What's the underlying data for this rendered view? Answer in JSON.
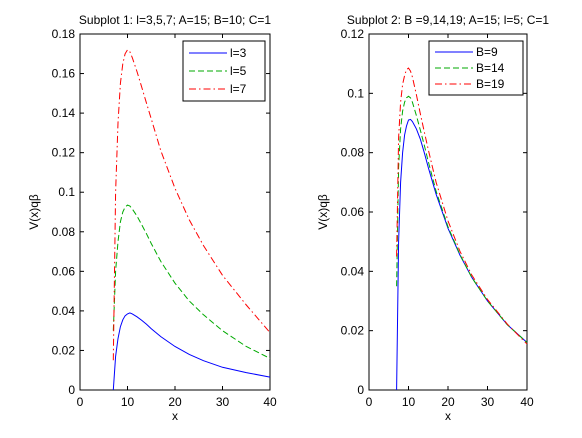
{
  "chart_data": [
    {
      "type": "line",
      "title": "Subplot 1: l=3,5,7; A=15; B=10; C=1",
      "xlabel": "x",
      "ylabel": "V(x)qβ",
      "xlim": [
        0,
        40
      ],
      "ylim": [
        0,
        0.18
      ],
      "xticks": [
        0,
        10,
        20,
        30,
        40
      ],
      "yticks": [
        0,
        0.02,
        0.04,
        0.06,
        0.08,
        0.1,
        0.12,
        0.14,
        0.16,
        0.18
      ],
      "xtick_labels": [
        "0",
        "10",
        "20",
        "30",
        "40"
      ],
      "ytick_labels": [
        "0",
        "0.02",
        "0.04",
        "0.06",
        "0.08",
        "0.1",
        "0.12",
        "0.14",
        "0.16",
        "0.18"
      ],
      "legend_position": "top-right",
      "grid": false,
      "series": [
        {
          "name": "l=3",
          "color": "#0000ff",
          "style": "solid",
          "x": [
            7,
            7.5,
            8,
            8.5,
            9,
            9.5,
            10,
            10.5,
            11,
            12,
            13,
            14,
            15,
            17,
            20,
            23,
            26,
            30,
            35,
            40
          ],
          "y": [
            0,
            0.017,
            0.026,
            0.032,
            0.0355,
            0.0375,
            0.0385,
            0.039,
            0.0385,
            0.037,
            0.0352,
            0.0332,
            0.031,
            0.027,
            0.022,
            0.018,
            0.0148,
            0.0115,
            0.0088,
            0.0065
          ]
        },
        {
          "name": "l=5",
          "color": "#00aa00",
          "style": "dashed",
          "x": [
            7,
            7.5,
            8,
            8.5,
            9,
            9.5,
            10,
            10.5,
            11,
            12,
            13,
            14,
            15,
            17,
            20,
            23,
            26,
            30,
            35,
            40
          ],
          "y": [
            0.03,
            0.06,
            0.075,
            0.085,
            0.09,
            0.0925,
            0.0935,
            0.093,
            0.0915,
            0.088,
            0.0835,
            0.079,
            0.074,
            0.065,
            0.054,
            0.045,
            0.038,
            0.03,
            0.022,
            0.016
          ]
        },
        {
          "name": "l=7",
          "color": "#ff0000",
          "style": "dashdot",
          "x": [
            7,
            7.5,
            8,
            8.5,
            9,
            9.5,
            10,
            10.5,
            11,
            12,
            13,
            14,
            15,
            17,
            20,
            23,
            26,
            30,
            35,
            40
          ],
          "y": [
            0.015,
            0.1,
            0.135,
            0.155,
            0.165,
            0.17,
            0.172,
            0.171,
            0.168,
            0.161,
            0.153,
            0.145,
            0.137,
            0.121,
            0.102,
            0.086,
            0.073,
            0.058,
            0.043,
            0.029
          ]
        }
      ]
    },
    {
      "type": "line",
      "title": "Subplot 2: B =9,14,19; A=15; l=5; C=1",
      "xlabel": "x",
      "ylabel": "V(x)qβ",
      "xlim": [
        0,
        40
      ],
      "ylim": [
        0,
        0.12
      ],
      "xticks": [
        0,
        10,
        20,
        30,
        40
      ],
      "yticks": [
        0,
        0.02,
        0.04,
        0.06,
        0.08,
        0.1,
        0.12
      ],
      "xtick_labels": [
        "0",
        "10",
        "20",
        "30",
        "40"
      ],
      "ytick_labels": [
        "0",
        "0.02",
        "0.04",
        "0.06",
        "0.08",
        "0.1",
        "0.12"
      ],
      "legend_position": "top-right",
      "grid": false,
      "series": [
        {
          "name": "B=9",
          "color": "#0000ff",
          "style": "solid",
          "x": [
            7,
            7.5,
            8,
            8.5,
            9,
            9.5,
            10,
            10.5,
            11,
            12,
            13,
            14,
            15,
            17,
            20,
            23,
            26,
            30,
            35,
            40
          ],
          "y": [
            0,
            0.05,
            0.07,
            0.08,
            0.086,
            0.089,
            0.091,
            0.0912,
            0.0905,
            0.088,
            0.0845,
            0.08,
            0.075,
            0.066,
            0.0545,
            0.0455,
            0.038,
            0.03,
            0.022,
            0.016
          ]
        },
        {
          "name": "B=14",
          "color": "#00aa00",
          "style": "dashed",
          "x": [
            7,
            7.5,
            8,
            8.5,
            9,
            9.5,
            10,
            10.5,
            11,
            12,
            13,
            14,
            15,
            17,
            20,
            23,
            26,
            30,
            35,
            40
          ],
          "y": [
            0.035,
            0.075,
            0.088,
            0.094,
            0.097,
            0.0985,
            0.099,
            0.0985,
            0.097,
            0.0925,
            0.0875,
            0.0825,
            0.077,
            0.067,
            0.055,
            0.0457,
            0.038,
            0.03,
            0.022,
            0.016
          ]
        },
        {
          "name": "B=19",
          "color": "#ff0000",
          "style": "dashdot",
          "x": [
            7,
            7.5,
            8,
            8.5,
            9,
            9.5,
            10,
            10.5,
            11,
            12,
            13,
            14,
            15,
            17,
            20,
            23,
            26,
            30,
            35,
            40
          ],
          "y": [
            0.045,
            0.085,
            0.097,
            0.103,
            0.106,
            0.108,
            0.1085,
            0.1075,
            0.1055,
            0.0995,
            0.093,
            0.087,
            0.081,
            0.07,
            0.057,
            0.0468,
            0.0388,
            0.0305,
            0.0222,
            0.0155
          ]
        }
      ]
    }
  ]
}
